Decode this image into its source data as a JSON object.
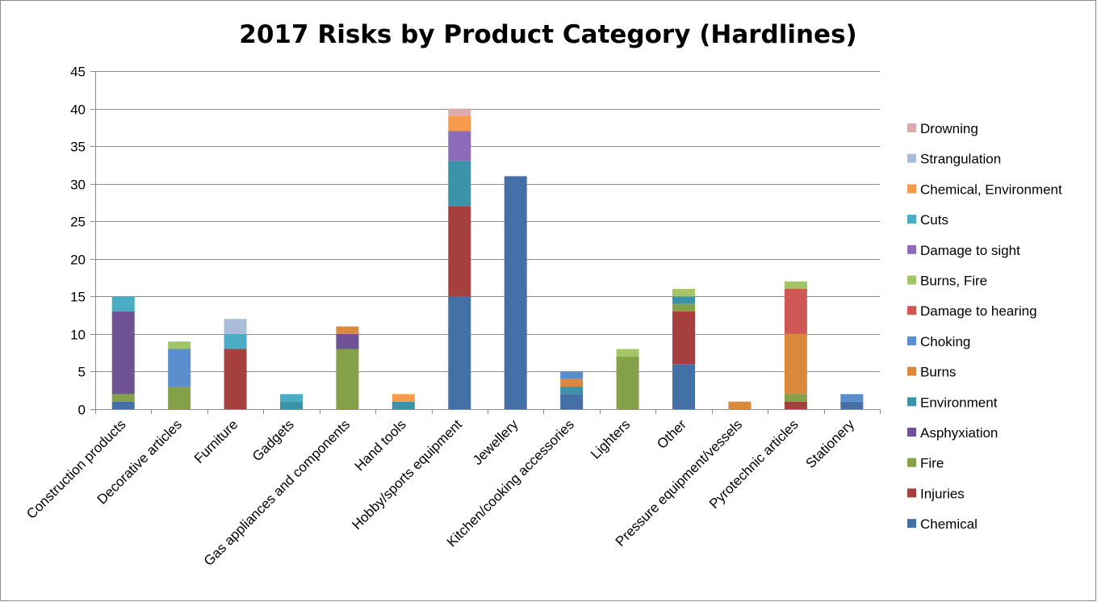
{
  "chart_data": {
    "type": "bar",
    "stacked": true,
    "title": "2017 Risks by Product Category (Hardlines)",
    "xlabel": "",
    "ylabel": "",
    "ylim": [
      0,
      45
    ],
    "yticks": [
      0,
      5,
      10,
      15,
      20,
      25,
      30,
      35,
      40,
      45
    ],
    "grid": true,
    "legend_position": "right",
    "categories": [
      "Construction products",
      "Decorative articles",
      "Furniture",
      "Gadgets",
      "Gas appliances and components",
      "Hand tools",
      "Hobby/sports equipment",
      "Jewellery",
      "Kitchen/cooking accessories",
      "Lighters",
      "Other",
      "Pressure equipment/vessels",
      "Pyrotechnic articles",
      "Stationery"
    ],
    "series": [
      {
        "name": "Chemical",
        "color": "#4470A8",
        "values": [
          1,
          0,
          0,
          0,
          0,
          0,
          15,
          31,
          2,
          0,
          6,
          0,
          0,
          1
        ]
      },
      {
        "name": "Injuries",
        "color": "#A5403F",
        "values": [
          0,
          0,
          8,
          0,
          0,
          0,
          12,
          0,
          0,
          0,
          7,
          0,
          1,
          0
        ]
      },
      {
        "name": "Fire",
        "color": "#84A048",
        "values": [
          1,
          3,
          0,
          0,
          8,
          0,
          0,
          0,
          0,
          7,
          1,
          0,
          1,
          0
        ]
      },
      {
        "name": "Asphyxiation",
        "color": "#6E5295",
        "values": [
          11,
          0,
          0,
          0,
          2,
          0,
          0,
          0,
          0,
          0,
          0,
          0,
          0,
          0
        ]
      },
      {
        "name": "Environment",
        "color": "#3C93A9",
        "values": [
          0,
          0,
          0,
          1,
          0,
          1,
          6,
          0,
          1,
          0,
          1,
          0,
          0,
          0
        ]
      },
      {
        "name": "Burns",
        "color": "#D9893C",
        "values": [
          0,
          0,
          0,
          0,
          1,
          0,
          0,
          0,
          1,
          0,
          0,
          1,
          8,
          0
        ]
      },
      {
        "name": "Choking",
        "color": "#5B8ECF",
        "values": [
          0,
          5,
          0,
          0,
          0,
          0,
          0,
          0,
          1,
          0,
          0,
          0,
          0,
          1
        ]
      },
      {
        "name": "Damage to hearing",
        "color": "#CF5855",
        "values": [
          0,
          0,
          0,
          0,
          0,
          0,
          0,
          0,
          0,
          0,
          0,
          0,
          6,
          0
        ]
      },
      {
        "name": "Burns, Fire",
        "color": "#A3C566",
        "values": [
          0,
          1,
          0,
          0,
          0,
          0,
          0,
          0,
          0,
          1,
          1,
          0,
          1,
          0
        ]
      },
      {
        "name": "Damage to sight",
        "color": "#8C6BB8",
        "values": [
          0,
          0,
          0,
          0,
          0,
          0,
          4,
          0,
          0,
          0,
          0,
          0,
          0,
          0
        ]
      },
      {
        "name": "Cuts",
        "color": "#4BACC6",
        "values": [
          2,
          0,
          2,
          1,
          0,
          0,
          0,
          0,
          0,
          0,
          0,
          0,
          0,
          0
        ]
      },
      {
        "name": "Chemical, Environment",
        "color": "#F79B4A",
        "values": [
          0,
          0,
          0,
          0,
          0,
          1,
          2,
          0,
          0,
          0,
          0,
          0,
          0,
          0
        ]
      },
      {
        "name": "Strangulation",
        "color": "#A9BCDA",
        "values": [
          0,
          0,
          2,
          0,
          0,
          0,
          0,
          0,
          0,
          0,
          0,
          0,
          0,
          0
        ]
      },
      {
        "name": "Drowning",
        "color": "#DBAAAC",
        "values": [
          0,
          0,
          0,
          0,
          0,
          0,
          1,
          0,
          0,
          0,
          0,
          0,
          0,
          0
        ]
      }
    ]
  }
}
